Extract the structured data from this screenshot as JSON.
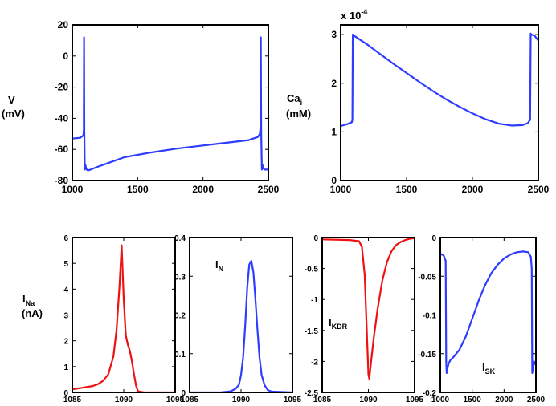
{
  "colors": {
    "blue": "#2e3cff",
    "red": "#ee1111",
    "axis": "#000000"
  },
  "chart_data": [
    {
      "id": "voltage",
      "type": "line",
      "ylabel": [
        "V",
        "(mV)"
      ],
      "xlim": [
        1000,
        2500
      ],
      "ylim": [
        -80,
        20
      ],
      "xticks": [
        1000,
        1500,
        2000,
        2500
      ],
      "yticks": [
        -80,
        -60,
        -40,
        -20,
        0,
        20
      ],
      "color": "blue",
      "series": [
        {
          "x": [
            1000,
            1060,
            1085,
            1088,
            1090,
            1092,
            1095,
            1100,
            1105,
            1110,
            1120,
            1140,
            1200,
            1300,
            1400,
            1500,
            1600,
            1800,
            2000,
            2200,
            2350,
            2420,
            2435,
            2440,
            2442,
            2445,
            2450,
            2455,
            2460,
            2470,
            2500
          ],
          "y": [
            -53,
            -52.5,
            -51,
            -48,
            12,
            -50,
            -73,
            -70,
            -72,
            -73,
            -73.5,
            -73,
            -71,
            -68,
            -65,
            -63.5,
            -62,
            -59.5,
            -57.5,
            -55.5,
            -54,
            -52,
            -50,
            -46,
            12,
            -50,
            -73,
            -70,
            -72,
            -73,
            -73
          ]
        }
      ]
    },
    {
      "id": "calcium",
      "type": "line",
      "ylabel": [
        "Ca",
        "i",
        "(mM)"
      ],
      "exponent": "x 10",
      "exponent_power": "-4",
      "xlim": [
        1000,
        2500
      ],
      "ylim": [
        0,
        3.2
      ],
      "xticks": [
        1000,
        1500,
        2000,
        2500
      ],
      "yticks": [
        0,
        1,
        2,
        3
      ],
      "color": "blue",
      "series": [
        {
          "x": [
            1000,
            1050,
            1085,
            1089,
            1092,
            1100,
            1200,
            1300,
            1400,
            1500,
            1600,
            1700,
            1800,
            1900,
            2000,
            2100,
            2200,
            2300,
            2380,
            2420,
            2438,
            2442,
            2446,
            2470,
            2500
          ],
          "y": [
            1.12,
            1.16,
            1.2,
            1.25,
            3.0,
            2.98,
            2.8,
            2.6,
            2.4,
            2.21,
            2.02,
            1.84,
            1.67,
            1.52,
            1.38,
            1.26,
            1.17,
            1.13,
            1.14,
            1.18,
            1.25,
            3.02,
            3.0,
            2.98,
            2.88
          ]
        }
      ]
    },
    {
      "id": "ina",
      "type": "line",
      "ylabel": [
        "I",
        "Na",
        "(nA)"
      ],
      "xlim": [
        1085,
        1095
      ],
      "ylim": [
        0,
        6
      ],
      "xticks": [
        1085,
        1090,
        1095
      ],
      "yticks": [
        0,
        1,
        2,
        3,
        4,
        5,
        6
      ],
      "color": "red",
      "series": [
        {
          "x": [
            1085,
            1086,
            1087,
            1087.5,
            1088,
            1088.5,
            1089,
            1089.3,
            1089.6,
            1089.8,
            1090,
            1090.2,
            1090.4,
            1090.6,
            1090.8,
            1091,
            1091.2,
            1091.4,
            1092,
            1095
          ],
          "y": [
            0.12,
            0.18,
            0.25,
            0.32,
            0.45,
            0.7,
            1.4,
            2.4,
            4.2,
            5.7,
            3.6,
            2.2,
            1.85,
            1.6,
            1.2,
            0.7,
            0.25,
            0.04,
            0.0,
            0.0
          ]
        }
      ]
    },
    {
      "id": "in",
      "type": "line",
      "label": [
        "I",
        "N"
      ],
      "xlim": [
        1085,
        1095
      ],
      "ylim": [
        0,
        0.4
      ],
      "xticks": [
        1085,
        1090,
        1095
      ],
      "yticks": [
        0,
        0.1,
        0.2,
        0.3,
        0.4
      ],
      "color": "blue",
      "series": [
        {
          "x": [
            1085,
            1088,
            1089,
            1089.5,
            1089.8,
            1090,
            1090.2,
            1090.4,
            1090.6,
            1090.8,
            1091,
            1091.2,
            1091.4,
            1091.6,
            1091.8,
            1092,
            1092.3,
            1092.6,
            1093,
            1095
          ],
          "y": [
            0,
            0,
            0.003,
            0.01,
            0.02,
            0.045,
            0.09,
            0.17,
            0.27,
            0.33,
            0.34,
            0.31,
            0.24,
            0.16,
            0.09,
            0.045,
            0.018,
            0.006,
            0.002,
            0
          ]
        }
      ]
    },
    {
      "id": "ikdr",
      "type": "line",
      "label": [
        "I",
        "KDR"
      ],
      "xlim": [
        1085,
        1095
      ],
      "ylim": [
        -2.5,
        0
      ],
      "xticks": [
        1085,
        1090,
        1095
      ],
      "yticks": [
        -2.5,
        -2,
        -1.5,
        -1,
        -0.5,
        0
      ],
      "color": "red",
      "series": [
        {
          "x": [
            1085,
            1088,
            1089,
            1089.3,
            1089.6,
            1089.8,
            1090,
            1090.1,
            1090.3,
            1090.6,
            1091,
            1091.5,
            1092,
            1092.5,
            1093,
            1093.5,
            1094,
            1094.5,
            1095
          ],
          "y": [
            -0.03,
            -0.04,
            -0.06,
            -0.15,
            -0.6,
            -1.4,
            -2.2,
            -2.28,
            -2.0,
            -1.6,
            -1.15,
            -0.7,
            -0.4,
            -0.22,
            -0.12,
            -0.07,
            -0.04,
            -0.02,
            -0.01
          ]
        }
      ]
    },
    {
      "id": "isk",
      "type": "line",
      "label": [
        "I",
        "SK"
      ],
      "xlim": [
        1000,
        2500
      ],
      "ylim": [
        -0.2,
        0
      ],
      "xticks": [
        1000,
        1500,
        2000,
        2500
      ],
      "yticks": [
        -0.2,
        -0.15,
        -0.1,
        -0.05,
        0
      ],
      "color": "blue",
      "series": [
        {
          "x": [
            1000,
            1050,
            1085,
            1092,
            1100,
            1110,
            1130,
            1160,
            1200,
            1300,
            1400,
            1500,
            1600,
            1700,
            1800,
            1900,
            2000,
            2100,
            2200,
            2300,
            2380,
            2420,
            2435,
            2442,
            2450,
            2470,
            2500
          ],
          "y": [
            -0.021,
            -0.023,
            -0.03,
            -0.16,
            -0.175,
            -0.17,
            -0.163,
            -0.158,
            -0.155,
            -0.145,
            -0.128,
            -0.105,
            -0.082,
            -0.062,
            -0.046,
            -0.035,
            -0.027,
            -0.022,
            -0.019,
            -0.018,
            -0.019,
            -0.025,
            -0.04,
            -0.175,
            -0.172,
            -0.16,
            -0.165
          ]
        }
      ]
    }
  ]
}
